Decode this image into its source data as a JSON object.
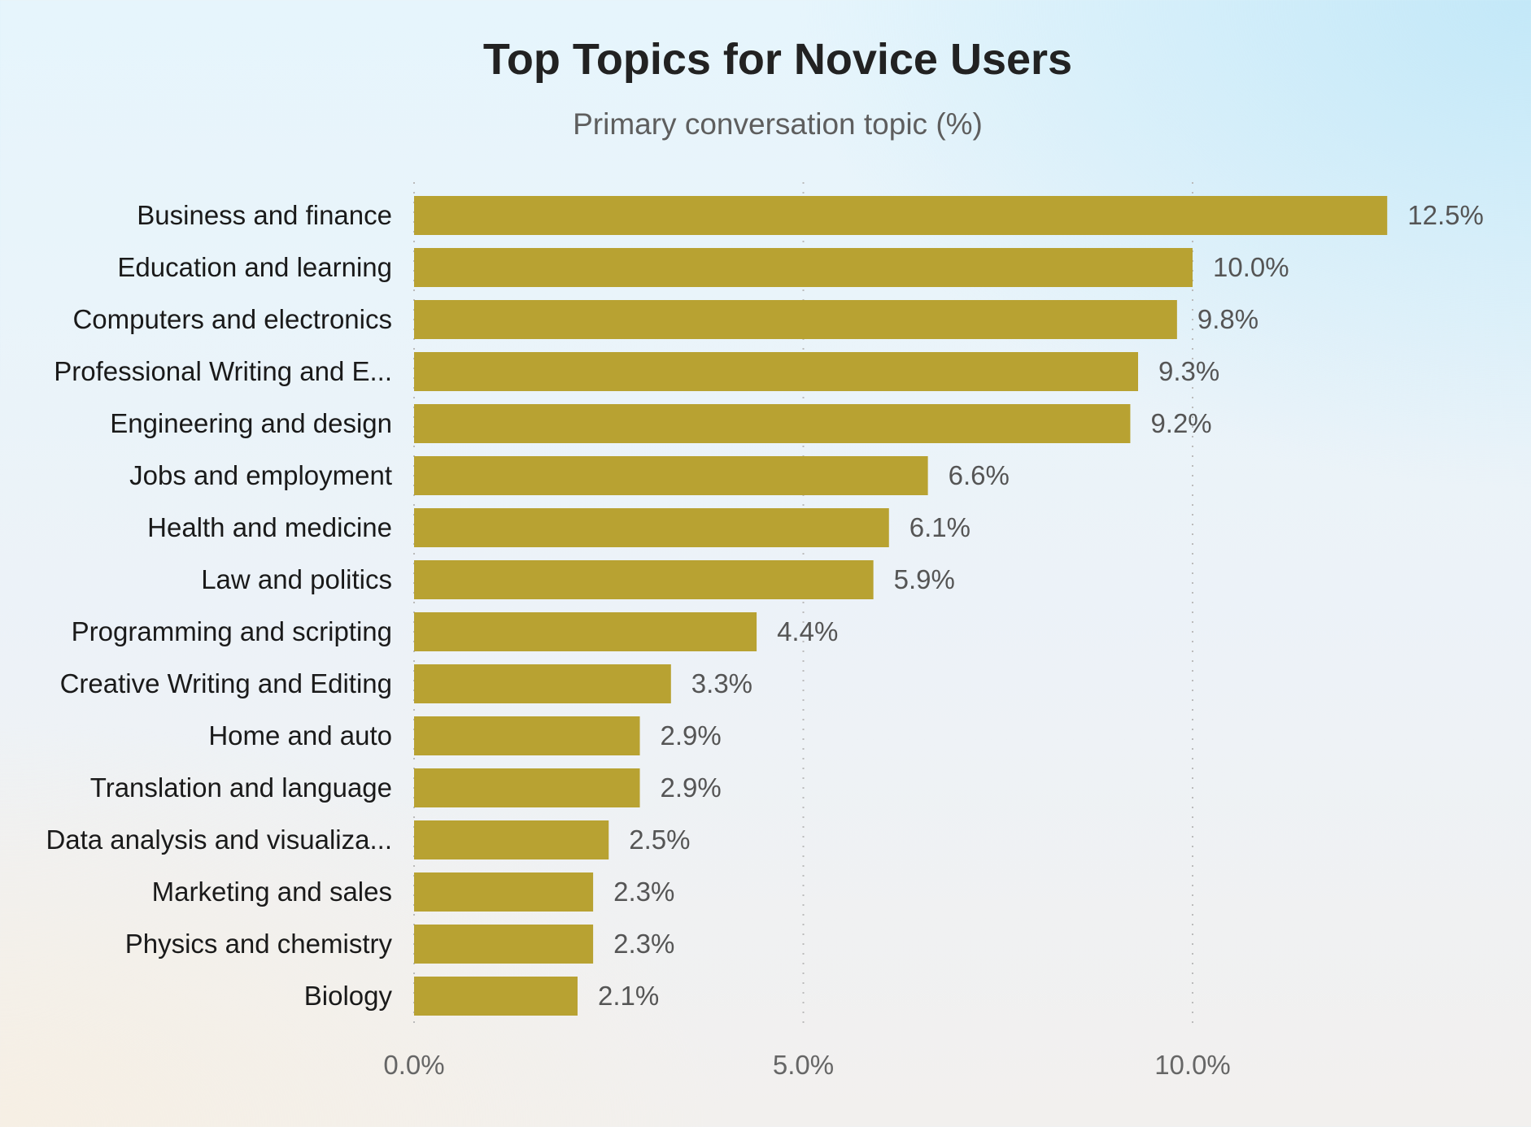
{
  "chart_data": {
    "type": "bar",
    "orientation": "horizontal",
    "title": "Top Topics for Novice Users",
    "subtitle": "Primary conversation topic (%)",
    "categories": [
      "Business and finance",
      "Education and learning",
      "Computers and electronics",
      "Professional Writing and E...",
      "Engineering and design",
      "Jobs and employment",
      "Health and medicine",
      "Law and politics",
      "Programming and scripting",
      "Creative Writing and Editing",
      "Home and auto",
      "Translation and language",
      "Data analysis and visualiza...",
      "Marketing and sales",
      "Physics and chemistry",
      "Biology"
    ],
    "values": [
      12.5,
      10.0,
      9.8,
      9.3,
      9.2,
      6.6,
      6.1,
      5.9,
      4.4,
      3.3,
      2.9,
      2.9,
      2.5,
      2.3,
      2.3,
      2.1
    ],
    "data_labels": [
      "12.5%",
      "10.0%",
      "9.8%",
      "9.3%",
      "9.2%",
      "6.6%",
      "6.1%",
      "5.9%",
      "4.4%",
      "3.3%",
      "2.9%",
      "2.9%",
      "2.5%",
      "2.3%",
      "2.3%",
      "2.1%"
    ],
    "xticks": [
      0,
      5,
      10
    ],
    "xtick_labels": [
      "0.0%",
      "5.0%",
      "10.0%"
    ],
    "xlim": [
      0,
      12.5
    ],
    "grid": "vertical dotted",
    "bar_color": "#b8a232"
  }
}
